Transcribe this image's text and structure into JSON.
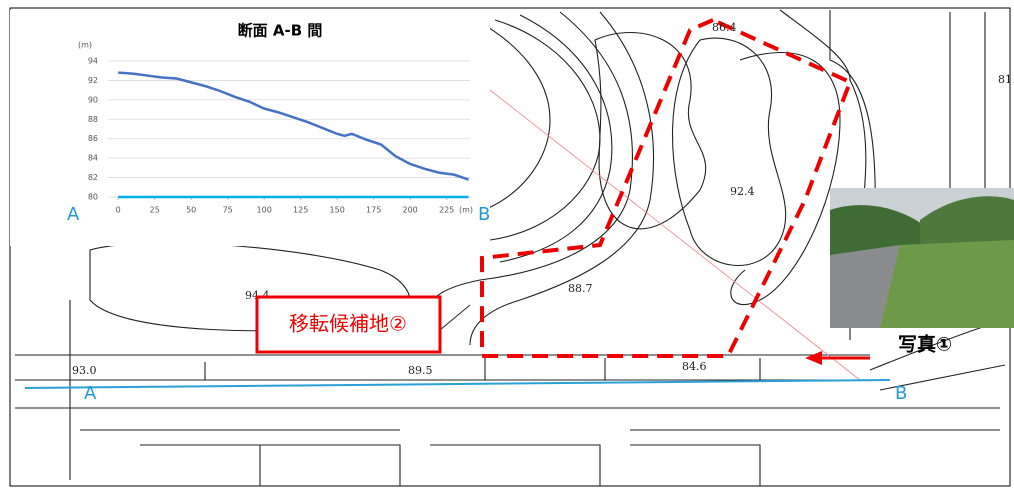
{
  "map": {
    "spot_heights": [
      "86.4",
      "92.4",
      "88.7",
      "94.4",
      "89.5",
      "84.6",
      "93.0",
      "81"
    ],
    "section_start": "A",
    "section_end": "B",
    "candidate_label": "移転候補地②",
    "photo_label": "写真①"
  },
  "chart_data": {
    "type": "line",
    "title": "断面 A-B 間",
    "y_unit": "(m)",
    "x_unit": "(m)",
    "start_label": "A",
    "end_label": "B",
    "x": [
      0,
      10,
      20,
      30,
      40,
      50,
      60,
      70,
      80,
      90,
      100,
      110,
      120,
      130,
      140,
      150,
      155,
      160,
      170,
      180,
      190,
      200,
      210,
      220,
      230,
      240
    ],
    "series": [
      {
        "color": "#4472c4",
        "values": [
          92.8,
          92.7,
          92.5,
          92.3,
          92.2,
          91.8,
          91.4,
          90.9,
          90.3,
          89.8,
          89.1,
          88.7,
          88.2,
          87.7,
          87.1,
          86.5,
          86.3,
          86.5,
          85.9,
          85.4,
          84.2,
          83.4,
          82.9,
          82.5,
          82.3,
          81.8
        ]
      },
      {
        "color": "#00b0f0",
        "values": [
          80,
          80,
          80,
          80,
          80,
          80,
          80,
          80,
          80,
          80,
          80,
          80,
          80,
          80,
          80,
          80,
          80,
          80,
          80,
          80,
          80,
          80,
          80,
          80,
          80,
          80
        ]
      }
    ],
    "xlim": [
      -7,
      241
    ],
    "ylim": [
      80,
      94
    ],
    "xticks": [
      0,
      25,
      50,
      75,
      100,
      125,
      150,
      175,
      200,
      225
    ],
    "yticks": [
      80,
      82,
      84,
      86,
      88,
      90,
      92,
      94
    ],
    "grid": true
  }
}
